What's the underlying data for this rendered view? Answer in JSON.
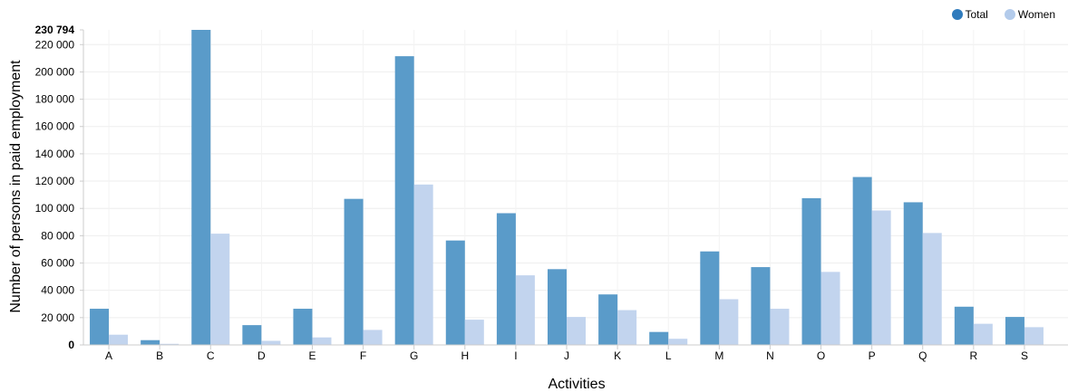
{
  "chart_data": {
    "type": "bar",
    "categories": [
      "A",
      "B",
      "C",
      "D",
      "E",
      "F",
      "G",
      "H",
      "I",
      "J",
      "K",
      "L",
      "M",
      "N",
      "O",
      "P",
      "Q",
      "R",
      "S"
    ],
    "series": [
      {
        "name": "Total",
        "color": "#5a9bc9",
        "values": [
          26500,
          3500,
          230794,
          14500,
          26500,
          107000,
          211500,
          76500,
          96500,
          55500,
          37000,
          9500,
          68500,
          57000,
          107500,
          123000,
          104500,
          28000,
          20500
        ]
      },
      {
        "name": "Women",
        "color": "#c2d4ee",
        "values": [
          7500,
          800,
          81500,
          3000,
          5500,
          11000,
          117500,
          18500,
          51000,
          20500,
          25500,
          4500,
          33500,
          26500,
          53500,
          98500,
          82000,
          15500,
          13000
        ]
      }
    ],
    "xlabel": "Activities",
    "ylabel": "Number of persons in paid employment",
    "ylim": [
      0,
      230794
    ],
    "yticks": [
      0,
      20000,
      40000,
      60000,
      80000,
      100000,
      120000,
      140000,
      160000,
      180000,
      200000,
      220000
    ],
    "ytick_labels": [
      "0",
      "20 000",
      "40 000",
      "60 000",
      "80 000",
      "100 000",
      "120 000",
      "140 000",
      "160 000",
      "180 000",
      "200 000",
      "220 000"
    ],
    "ymax_label": "230 794",
    "grid": true,
    "legend_position": "top-right"
  }
}
